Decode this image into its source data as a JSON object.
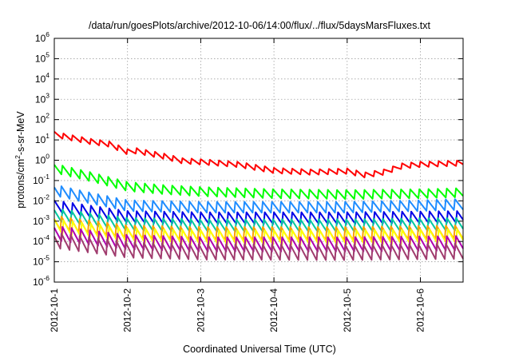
{
  "chart_data": {
    "type": "line",
    "title": "/data/run/goesPlots/archive/2012-10-06/14:00/flux/../flux/5daysMarsFluxes.txt",
    "xlabel": "Coordinated Universal Time (UTC)",
    "ylabel": {
      "prefix": "protons/cm",
      "sup": "2",
      "suffix": "-s-sr-MeV"
    },
    "xscale": "time",
    "yscale": "log",
    "xlim": [
      "2012-10-01 00:00",
      "2012-10-06 14:00"
    ],
    "ylim": [
      1e-06,
      1000000.0
    ],
    "grid": true,
    "x_ticks": [
      "2012-10-1",
      "2012-10-2",
      "2012-10-3",
      "2012-10-4",
      "2012-10-5",
      "2012-10-6"
    ],
    "y_ticks": [
      {
        "value": 1e-06,
        "base": "10",
        "exp": "-6"
      },
      {
        "value": 1e-05,
        "base": "10",
        "exp": "-5"
      },
      {
        "value": 0.0001,
        "base": "10",
        "exp": "-4"
      },
      {
        "value": 0.001,
        "base": "10",
        "exp": "-3"
      },
      {
        "value": 0.01,
        "base": "10",
        "exp": "-2"
      },
      {
        "value": 0.1,
        "base": "10",
        "exp": "-1"
      },
      {
        "value": 1,
        "base": "10",
        "exp": "0"
      },
      {
        "value": 10,
        "base": "10",
        "exp": "1"
      },
      {
        "value": 100,
        "base": "10",
        "exp": "2"
      },
      {
        "value": 1000.0,
        "base": "10",
        "exp": "3"
      },
      {
        "value": 10000.0,
        "base": "10",
        "exp": "4"
      },
      {
        "value": 100000.0,
        "base": "10",
        "exp": "5"
      },
      {
        "value": 1000000.0,
        "base": "10",
        "exp": "6"
      }
    ],
    "series": [
      {
        "color": "#ff0000",
        "sawtooth_amplitude_decades": 0.3,
        "points": [
          [
            "2012-10-01 00:00",
            18
          ],
          [
            "2012-10-01 06:00",
            12
          ],
          [
            "2012-10-01 12:00",
            8
          ],
          [
            "2012-10-01 18:00",
            6
          ],
          [
            "2012-10-02 00:00",
            2.5
          ],
          [
            "2012-10-02 03:00",
            2.8
          ],
          [
            "2012-10-02 12:00",
            1.5
          ],
          [
            "2012-10-02 18:00",
            0.9
          ],
          [
            "2012-10-03 00:00",
            0.8
          ],
          [
            "2012-10-03 12:00",
            0.6
          ],
          [
            "2012-10-04 00:00",
            0.3
          ],
          [
            "2012-10-04 12:00",
            0.25
          ],
          [
            "2012-10-05 00:00",
            0.28
          ],
          [
            "2012-10-05 06:00",
            0.18
          ],
          [
            "2012-10-05 12:00",
            0.25
          ],
          [
            "2012-10-05 18:00",
            0.5
          ],
          [
            "2012-10-06 00:00",
            0.6
          ],
          [
            "2012-10-06 14:00",
            0.7
          ]
        ]
      },
      {
        "color": "#00ff00",
        "sawtooth_amplitude_decades": 0.5,
        "points": [
          [
            "2012-10-01 00:00",
            0.4
          ],
          [
            "2012-10-01 12:00",
            0.15
          ],
          [
            "2012-10-02 00:00",
            0.05
          ],
          [
            "2012-10-02 12:00",
            0.035
          ],
          [
            "2012-10-03 00:00",
            0.028
          ],
          [
            "2012-10-04 00:00",
            0.022
          ],
          [
            "2012-10-05 00:00",
            0.02
          ],
          [
            "2012-10-06 00:00",
            0.022
          ],
          [
            "2012-10-06 14:00",
            0.025
          ]
        ]
      },
      {
        "color": "#1e8cff",
        "sawtooth_amplitude_decades": 0.6,
        "points": [
          [
            "2012-10-01 00:00",
            0.035
          ],
          [
            "2012-10-01 12:00",
            0.014
          ],
          [
            "2012-10-02 00:00",
            0.006
          ],
          [
            "2012-10-03 00:00",
            0.005
          ],
          [
            "2012-10-04 00:00",
            0.005
          ],
          [
            "2012-10-05 00:00",
            0.005
          ],
          [
            "2012-10-06 00:00",
            0.006
          ],
          [
            "2012-10-06 14:00",
            0.007
          ]
        ]
      },
      {
        "color": "#0000e6",
        "sawtooth_amplitude_decades": 0.65,
        "points": [
          [
            "2012-10-01 00:00",
            0.005
          ],
          [
            "2012-10-02 00:00",
            0.0015
          ],
          [
            "2012-10-03 00:00",
            0.0013
          ],
          [
            "2012-10-04 00:00",
            0.0013
          ],
          [
            "2012-10-05 00:00",
            0.0013
          ],
          [
            "2012-10-06 14:00",
            0.0015
          ]
        ]
      },
      {
        "color": "#00c8a0",
        "sawtooth_amplitude_decades": 0.7,
        "points": [
          [
            "2012-10-01 00:00",
            0.002
          ],
          [
            "2012-10-02 00:00",
            0.0007
          ],
          [
            "2012-10-03 00:00",
            0.0006
          ],
          [
            "2012-10-05 00:00",
            0.0006
          ],
          [
            "2012-10-06 14:00",
            0.0007
          ]
        ]
      },
      {
        "color": "#ffa000",
        "sawtooth_amplitude_decades": 0.75,
        "points": [
          [
            "2012-10-01 00:00",
            0.0009
          ],
          [
            "2012-10-02 00:00",
            0.0003
          ],
          [
            "2012-10-03 00:00",
            0.00025
          ],
          [
            "2012-10-05 00:00",
            0.00025
          ],
          [
            "2012-10-06 14:00",
            0.0003
          ]
        ]
      },
      {
        "color": "#ffff00",
        "sawtooth_amplitude_decades": 0.8,
        "points": [
          [
            "2012-10-01 00:00",
            0.0005
          ],
          [
            "2012-10-02 00:00",
            0.00018
          ],
          [
            "2012-10-03 00:00",
            0.00014
          ],
          [
            "2012-10-05 00:00",
            0.00014
          ],
          [
            "2012-10-06 14:00",
            0.00016
          ]
        ]
      },
      {
        "color": "#b000b0",
        "sawtooth_amplitude_decades": 0.8,
        "points": [
          [
            "2012-10-01 00:00",
            0.00025
          ],
          [
            "2012-10-02 00:00",
            9e-05
          ],
          [
            "2012-10-03 00:00",
            7e-05
          ],
          [
            "2012-10-05 00:00",
            7e-05
          ],
          [
            "2012-10-06 14:00",
            8e-05
          ]
        ]
      },
      {
        "color": "#a03c6e",
        "sawtooth_amplitude_decades": 0.85,
        "points": [
          [
            "2012-10-01 00:00",
            0.00012
          ],
          [
            "2012-10-02 00:00",
            4e-05
          ],
          [
            "2012-10-03 00:00",
            3.2e-05
          ],
          [
            "2012-10-05 00:00",
            3e-05
          ],
          [
            "2012-10-06 14:00",
            3.5e-05
          ]
        ]
      }
    ]
  }
}
